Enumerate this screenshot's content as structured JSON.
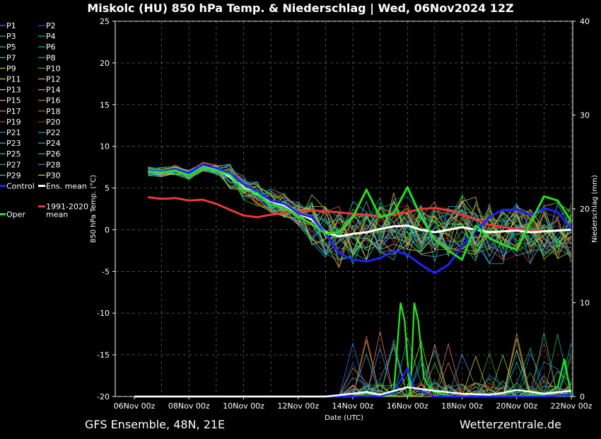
{
  "title": "Miskolc  (HU)  850 hPa Temp. & Niederschlag | Wed, 06Nov2024 12Z",
  "footer": {
    "left": "GFS Ensemble, 48N, 21E",
    "right": "Wetterzentrale.de"
  },
  "colors": {
    "background": "#000000",
    "control": "#1e22ff",
    "ens_mean": "#ffffff",
    "clim_mean": "#e8383a",
    "oper": "#22dd22"
  },
  "chart_data": {
    "type": "line",
    "title": "Miskolc  (HU)  850 hPa Temp. & Niederschlag | Wed, 06Nov2024 12Z",
    "xlabel": "Date (UTC)",
    "ylabel": "850 hPa Temp. (°C)",
    "y2label": "Niederschlag (mm)",
    "xlim": [
      0,
      16
    ],
    "ylim": [
      -20,
      25
    ],
    "y2lim": [
      0,
      40
    ],
    "x_ticks": [
      {
        "x": 0,
        "label": "06Nov 00z"
      },
      {
        "x": 2,
        "label": "08Nov 00z"
      },
      {
        "x": 4,
        "label": "10Nov 00z"
      },
      {
        "x": 6,
        "label": "12Nov 00z"
      },
      {
        "x": 8,
        "label": "14Nov 00z"
      },
      {
        "x": 10,
        "label": "16Nov 00z"
      },
      {
        "x": 12,
        "label": "18Nov 00z"
      },
      {
        "x": 14,
        "label": "20Nov 00z"
      },
      {
        "x": 16,
        "label": "22Nov 00z"
      }
    ],
    "y_ticks": [
      25,
      20,
      15,
      10,
      5,
      0,
      -5,
      -10,
      -15,
      -20
    ],
    "y2_ticks": [
      40,
      30,
      20,
      10,
      0
    ],
    "grid": true,
    "x_days": [
      0.5,
      1,
      1.5,
      2,
      2.5,
      3,
      3.5,
      4,
      4.5,
      5,
      5.5,
      6,
      6.5,
      7,
      7.5,
      8,
      8.5,
      9,
      9.5,
      10,
      10.5,
      11,
      11.5,
      12,
      12.5,
      13,
      13.5,
      14,
      14.5,
      15,
      15.5,
      16
    ],
    "series": [
      {
        "name": "Control",
        "color": "#1e22ff",
        "width": 3,
        "values": [
          7.1,
          7.0,
          7.3,
          6.8,
          7.8,
          7.4,
          6.8,
          5.5,
          4.6,
          3.5,
          3.1,
          2.0,
          1.5,
          -0.5,
          -2.8,
          -3.6,
          -3.8,
          -3.4,
          -2.5,
          -3.0,
          -4.2,
          -5.2,
          -4.2,
          -2.0,
          -0.2,
          1.5,
          2.4,
          2.4,
          1.8,
          2.6,
          2.1,
          0.1
        ]
      },
      {
        "name": "Ens. mean",
        "color": "#ffffff",
        "width": 3,
        "values": [
          7.0,
          6.9,
          7.2,
          6.6,
          7.6,
          7.2,
          6.4,
          5.0,
          4.3,
          3.4,
          2.9,
          2.0,
          1.2,
          -0.3,
          -0.8,
          -0.5,
          -0.3,
          0.1,
          0.4,
          0.5,
          0.0,
          -0.3,
          0.0,
          0.3,
          0.0,
          -0.3,
          -0.2,
          -0.1,
          -0.3,
          -0.2,
          -0.1,
          0.0
        ]
      },
      {
        "name": "1991-2020 mean",
        "color": "#e8383a",
        "width": 3,
        "values": [
          3.9,
          3.7,
          3.8,
          3.5,
          3.6,
          3.1,
          2.4,
          1.7,
          1.5,
          1.8,
          2.0,
          2.2,
          2.3,
          2.2,
          2.1,
          1.9,
          1.8,
          1.6,
          1.8,
          2.1,
          2.5,
          2.6,
          2.3,
          1.8,
          1.2,
          0.6,
          0.3,
          0.1,
          -0.1,
          -0.2,
          -0.1,
          0.0
        ]
      },
      {
        "name": "Oper",
        "color": "#22dd22",
        "width": 3,
        "values": [
          7.0,
          6.9,
          7.1,
          6.5,
          7.5,
          7.1,
          6.6,
          4.8,
          4.4,
          3.0,
          2.6,
          1.6,
          0.7,
          -0.5,
          -0.3,
          1.5,
          4.8,
          1.5,
          2.0,
          5.1,
          1.5,
          -1.2,
          -2.5,
          -3.6,
          0.5,
          -1.0,
          -1.8,
          -2.4,
          0.8,
          4.0,
          3.5,
          1.0
        ]
      }
    ],
    "precip_series": [
      {
        "name": "Oper precip",
        "color": "#22dd22",
        "x": [
          0,
          8,
          8.5,
          9,
          9.5,
          9.75,
          9.9,
          10.1,
          10.25,
          10.4,
          10.6,
          10.8,
          11,
          11.5,
          12,
          14,
          15,
          15.5,
          15.75,
          16
        ],
        "values": [
          0,
          0,
          0.2,
          0,
          0.5,
          10,
          8,
          0,
          10,
          8,
          2,
          1,
          0.5,
          0,
          0,
          0,
          0.2,
          1,
          4,
          0
        ]
      },
      {
        "name": "Control precip",
        "color": "#1e22ff",
        "x": [
          0,
          8,
          8.5,
          9,
          9.5,
          10,
          10.25,
          10.5,
          11,
          12,
          14,
          15,
          16
        ],
        "values": [
          0,
          0,
          0.1,
          0,
          0.5,
          3,
          1,
          0.5,
          0,
          0,
          0,
          0,
          0.2
        ]
      },
      {
        "name": "Ens. mean precip",
        "color": "#ffffff",
        "x": [
          0,
          7,
          8,
          8.5,
          9,
          10,
          11,
          12,
          13,
          13.5,
          14,
          15,
          16
        ],
        "values": [
          0,
          0,
          0.3,
          0.5,
          0.2,
          1.0,
          0.6,
          0.3,
          0.2,
          0.4,
          0.7,
          0.3,
          0.6
        ]
      }
    ],
    "members_count": 30
  },
  "legend": {
    "left_col": [
      "P1",
      "P3",
      "P5",
      "P7",
      "P9",
      "P11",
      "P13",
      "P15",
      "P17",
      "P19",
      "P21",
      "P23",
      "P25",
      "P27",
      "P29"
    ],
    "right_col": [
      "P2",
      "P4",
      "P6",
      "P8",
      "P10",
      "P12",
      "P14",
      "P16",
      "P18",
      "P20",
      "P22",
      "P24",
      "P26",
      "P28",
      "P30"
    ],
    "control_label": "Control",
    "ens_mean_label": "Ens. mean",
    "clim_label_line1": "1991-2020",
    "clim_label_line2": "mean",
    "oper_label": "Oper"
  }
}
